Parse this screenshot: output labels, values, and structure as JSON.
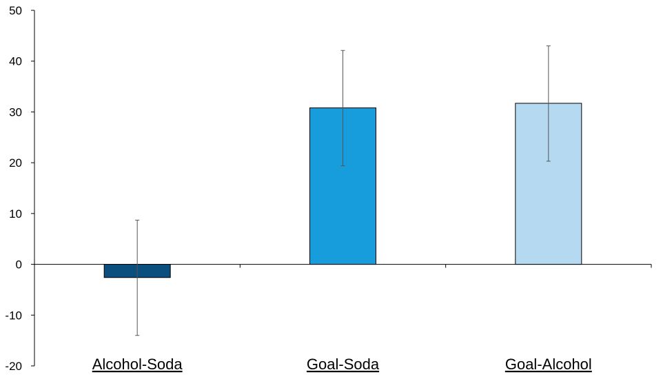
{
  "chart_data": {
    "type": "bar",
    "categories": [
      "Alcohol-Soda",
      "Goal-Soda",
      "Goal-Alcohol"
    ],
    "values": [
      -2.6,
      30.8,
      31.7
    ],
    "error_low": [
      -14,
      19.4,
      20.3
    ],
    "error_high": [
      8.7,
      42.1,
      43.0
    ],
    "colors": [
      "#0b4f7e",
      "#179ddc",
      "#b5d9f1"
    ],
    "ylim": [
      -20,
      50
    ],
    "yticks": [
      -20,
      -10,
      0,
      10,
      20,
      30,
      40,
      50
    ],
    "title": "",
    "xlabel": "",
    "ylabel": "",
    "grid": false,
    "category_labels_underlined": true
  }
}
